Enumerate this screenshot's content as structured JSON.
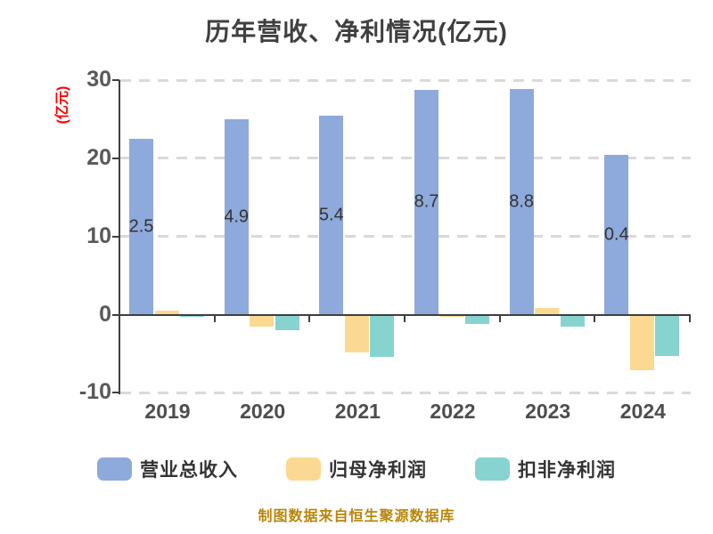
{
  "chart_data": {
    "type": "bar",
    "title": "历年营收、净利情况(亿元)",
    "ylabel": "(亿元)",
    "categories": [
      "2019",
      "2020",
      "2021",
      "2022",
      "2023",
      "2024"
    ],
    "series": [
      {
        "key": "total-operating-revenue",
        "name": "营业总收入",
        "color": "#8ea9db",
        "values": [
          22.53,
          24.96,
          25.41,
          28.73,
          28.89,
          20.45
        ],
        "show_labels": true
      },
      {
        "key": "net-profit-attributable",
        "name": "归母净利润",
        "color": "#fbd992",
        "values": [
          0.55,
          -1.4,
          -4.7,
          -0.15,
          0.8,
          -7.0
        ],
        "show_labels": false
      },
      {
        "key": "deducted-net-profit",
        "name": "扣非净利润",
        "color": "#87d3d0",
        "values": [
          -0.05,
          -1.9,
          -5.3,
          -1.1,
          -1.45,
          -5.2
        ],
        "show_labels": false
      }
    ],
    "ylim": [
      -10,
      30
    ],
    "yticks": [
      30,
      20,
      10,
      0,
      -10
    ],
    "grid": "horizontal-dashed",
    "legend_position": "bottom"
  },
  "footer": {
    "source_note": "制图数据来自恒生聚源数据库"
  },
  "colors": {
    "title_text": "#404040",
    "axis_text": "#595959",
    "axis_line": "#3f3f3f",
    "gridline": "#d9d9d9",
    "ylabel_text": "#ff0000",
    "footer_text": "#b8860b",
    "bar_label_text": "#333333"
  }
}
